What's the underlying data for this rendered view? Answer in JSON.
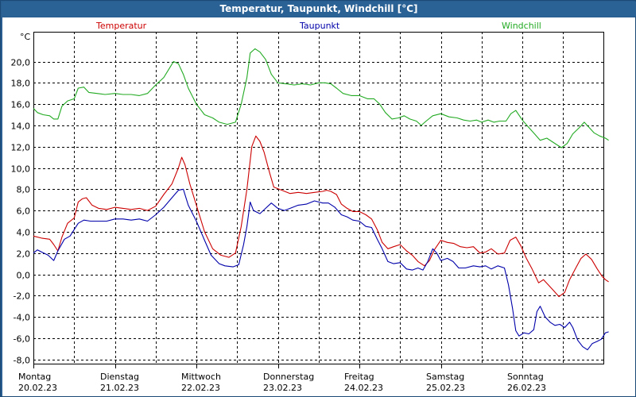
{
  "window": {
    "title": "Temperatur, Taupunkt, Windchill [°C]"
  },
  "chart_data": {
    "type": "line",
    "title": "Temperatur, Taupunkt, Windchill [°C]",
    "ylabel": "°C",
    "ylim": [
      -9,
      23
    ],
    "xlim": [
      0,
      7
    ],
    "yticks": [
      {
        "v": 20,
        "label": "20,0"
      },
      {
        "v": 18,
        "label": "18,0"
      },
      {
        "v": 16,
        "label": "16,0"
      },
      {
        "v": 14,
        "label": "14,0"
      },
      {
        "v": 12,
        "label": "12,0"
      },
      {
        "v": 10,
        "label": "10,0"
      },
      {
        "v": 8,
        "label": "8,0"
      },
      {
        "v": 6,
        "label": "6,0"
      },
      {
        "v": 4,
        "label": "4,0"
      },
      {
        "v": 2,
        "label": "2,0"
      },
      {
        "v": 0,
        "label": "0,0"
      },
      {
        "v": -2,
        "label": "-2,0"
      },
      {
        "v": -4,
        "label": "-4,0"
      },
      {
        "v": -6,
        "label": "-6,0"
      },
      {
        "v": -8,
        "label": "-8,0"
      }
    ],
    "days": [
      {
        "x": 0,
        "day": "Montag",
        "date": "20.02.23"
      },
      {
        "x": 1,
        "day": "Dienstag",
        "date": "21.02.23"
      },
      {
        "x": 2,
        "day": "Mittwoch",
        "date": "22.02.23"
      },
      {
        "x": 3,
        "day": "Donnerstag",
        "date": "23.02.23"
      },
      {
        "x": 4,
        "day": "Freitag",
        "date": "24.02.23"
      },
      {
        "x": 5,
        "day": "Samstag",
        "date": "25.02.23"
      },
      {
        "x": 6,
        "day": "Sonntag",
        "date": "26.02.23"
      }
    ],
    "vgrid": [
      0.5,
      1,
      1.5,
      2,
      2.5,
      3,
      3.5,
      4,
      4.5,
      5,
      5.5,
      6,
      6.5
    ],
    "series": [
      {
        "name": "Temperatur",
        "color": "#cc0000",
        "points": [
          [
            0.0,
            3.6
          ],
          [
            0.1,
            3.4
          ],
          [
            0.2,
            3.3
          ],
          [
            0.25,
            2.8
          ],
          [
            0.3,
            2.2
          ],
          [
            0.35,
            3.5
          ],
          [
            0.42,
            4.8
          ],
          [
            0.5,
            5.3
          ],
          [
            0.55,
            6.8
          ],
          [
            0.6,
            7.1
          ],
          [
            0.65,
            7.2
          ],
          [
            0.72,
            6.5
          ],
          [
            0.8,
            6.2
          ],
          [
            0.9,
            6.1
          ],
          [
            1.0,
            6.3
          ],
          [
            1.1,
            6.2
          ],
          [
            1.2,
            6.1
          ],
          [
            1.3,
            6.2
          ],
          [
            1.4,
            6.0
          ],
          [
            1.5,
            6.4
          ],
          [
            1.6,
            7.5
          ],
          [
            1.7,
            8.5
          ],
          [
            1.78,
            10.0
          ],
          [
            1.82,
            11.0
          ],
          [
            1.86,
            10.3
          ],
          [
            1.92,
            8.5
          ],
          [
            2.0,
            6.5
          ],
          [
            2.1,
            4.0
          ],
          [
            2.2,
            2.4
          ],
          [
            2.3,
            1.8
          ],
          [
            2.4,
            1.6
          ],
          [
            2.48,
            2.0
          ],
          [
            2.55,
            4.5
          ],
          [
            2.62,
            8.0
          ],
          [
            2.68,
            12.0
          ],
          [
            2.73,
            13.0
          ],
          [
            2.78,
            12.5
          ],
          [
            2.83,
            11.5
          ],
          [
            2.9,
            9.5
          ],
          [
            2.95,
            8.2
          ],
          [
            3.05,
            7.9
          ],
          [
            3.15,
            7.6
          ],
          [
            3.25,
            7.7
          ],
          [
            3.35,
            7.6
          ],
          [
            3.45,
            7.7
          ],
          [
            3.55,
            7.8
          ],
          [
            3.6,
            7.9
          ],
          [
            3.65,
            7.8
          ],
          [
            3.72,
            7.5
          ],
          [
            3.78,
            6.6
          ],
          [
            3.85,
            6.2
          ],
          [
            3.92,
            5.9
          ],
          [
            4.0,
            5.9
          ],
          [
            4.08,
            5.6
          ],
          [
            4.15,
            5.2
          ],
          [
            4.22,
            4.2
          ],
          [
            4.28,
            3.0
          ],
          [
            4.35,
            2.4
          ],
          [
            4.42,
            2.6
          ],
          [
            4.5,
            2.8
          ],
          [
            4.58,
            2.2
          ],
          [
            4.65,
            1.8
          ],
          [
            4.72,
            1.2
          ],
          [
            4.8,
            0.8
          ],
          [
            4.86,
            1.3
          ],
          [
            4.92,
            2.3
          ],
          [
            5.0,
            3.2
          ],
          [
            5.08,
            3.0
          ],
          [
            5.16,
            2.9
          ],
          [
            5.24,
            2.6
          ],
          [
            5.32,
            2.5
          ],
          [
            5.4,
            2.6
          ],
          [
            5.48,
            2.0
          ],
          [
            5.55,
            2.1
          ],
          [
            5.62,
            2.4
          ],
          [
            5.7,
            1.9
          ],
          [
            5.78,
            2.0
          ],
          [
            5.85,
            3.2
          ],
          [
            5.92,
            3.5
          ],
          [
            5.98,
            2.7
          ],
          [
            6.05,
            1.5
          ],
          [
            6.12,
            0.5
          ],
          [
            6.2,
            -0.8
          ],
          [
            6.26,
            -0.5
          ],
          [
            6.32,
            -1.0
          ],
          [
            6.38,
            -1.5
          ],
          [
            6.45,
            -2.1
          ],
          [
            6.52,
            -1.7
          ],
          [
            6.58,
            -0.5
          ],
          [
            6.65,
            0.5
          ],
          [
            6.72,
            1.5
          ],
          [
            6.78,
            1.9
          ],
          [
            6.85,
            1.4
          ],
          [
            6.92,
            0.5
          ],
          [
            6.98,
            -0.2
          ],
          [
            7.02,
            -0.5
          ],
          [
            7.06,
            -0.7
          ]
        ]
      },
      {
        "name": "Taupunkt",
        "color": "#0000aa",
        "points": [
          [
            0.0,
            2.0
          ],
          [
            0.05,
            2.3
          ],
          [
            0.1,
            2.1
          ],
          [
            0.18,
            1.8
          ],
          [
            0.25,
            1.3
          ],
          [
            0.3,
            2.2
          ],
          [
            0.38,
            3.3
          ],
          [
            0.45,
            3.6
          ],
          [
            0.55,
            4.8
          ],
          [
            0.62,
            5.1
          ],
          [
            0.7,
            5.0
          ],
          [
            0.8,
            5.0
          ],
          [
            0.9,
            5.0
          ],
          [
            1.0,
            5.2
          ],
          [
            1.1,
            5.2
          ],
          [
            1.2,
            5.1
          ],
          [
            1.3,
            5.2
          ],
          [
            1.4,
            5.0
          ],
          [
            1.5,
            5.6
          ],
          [
            1.6,
            6.3
          ],
          [
            1.7,
            7.2
          ],
          [
            1.78,
            7.9
          ],
          [
            1.84,
            8.0
          ],
          [
            1.9,
            6.5
          ],
          [
            2.0,
            5.0
          ],
          [
            2.1,
            3.2
          ],
          [
            2.18,
            1.8
          ],
          [
            2.28,
            1.0
          ],
          [
            2.35,
            0.8
          ],
          [
            2.45,
            0.7
          ],
          [
            2.52,
            0.9
          ],
          [
            2.58,
            2.8
          ],
          [
            2.62,
            4.5
          ],
          [
            2.66,
            6.8
          ],
          [
            2.7,
            6.0
          ],
          [
            2.78,
            5.7
          ],
          [
            2.85,
            6.2
          ],
          [
            2.92,
            6.7
          ],
          [
            3.0,
            6.2
          ],
          [
            3.08,
            6.0
          ],
          [
            3.15,
            6.2
          ],
          [
            3.25,
            6.5
          ],
          [
            3.35,
            6.6
          ],
          [
            3.45,
            6.9
          ],
          [
            3.55,
            6.7
          ],
          [
            3.62,
            6.7
          ],
          [
            3.7,
            6.3
          ],
          [
            3.78,
            5.6
          ],
          [
            3.85,
            5.4
          ],
          [
            3.92,
            5.1
          ],
          [
            4.0,
            5.0
          ],
          [
            4.08,
            4.5
          ],
          [
            4.15,
            4.4
          ],
          [
            4.22,
            3.3
          ],
          [
            4.28,
            2.4
          ],
          [
            4.35,
            1.2
          ],
          [
            4.42,
            1.0
          ],
          [
            4.5,
            1.1
          ],
          [
            4.58,
            0.5
          ],
          [
            4.65,
            0.4
          ],
          [
            4.72,
            0.6
          ],
          [
            4.78,
            0.4
          ],
          [
            4.84,
            1.2
          ],
          [
            4.9,
            2.4
          ],
          [
            4.95,
            2.0
          ],
          [
            5.0,
            1.3
          ],
          [
            5.08,
            1.5
          ],
          [
            5.15,
            1.2
          ],
          [
            5.22,
            0.6
          ],
          [
            5.3,
            0.6
          ],
          [
            5.4,
            0.8
          ],
          [
            5.48,
            0.7
          ],
          [
            5.55,
            0.8
          ],
          [
            5.62,
            0.5
          ],
          [
            5.7,
            0.8
          ],
          [
            5.78,
            0.6
          ],
          [
            5.83,
            -1.0
          ],
          [
            5.88,
            -3.2
          ],
          [
            5.92,
            -5.3
          ],
          [
            5.96,
            -5.8
          ],
          [
            6.02,
            -5.5
          ],
          [
            6.08,
            -5.6
          ],
          [
            6.14,
            -5.2
          ],
          [
            6.18,
            -3.5
          ],
          [
            6.22,
            -3.0
          ],
          [
            6.28,
            -4.0
          ],
          [
            6.34,
            -4.5
          ],
          [
            6.4,
            -4.8
          ],
          [
            6.46,
            -4.7
          ],
          [
            6.52,
            -5.0
          ],
          [
            6.58,
            -4.5
          ],
          [
            6.62,
            -5.0
          ],
          [
            6.68,
            -6.2
          ],
          [
            6.74,
            -6.8
          ],
          [
            6.8,
            -7.1
          ],
          [
            6.86,
            -6.5
          ],
          [
            6.92,
            -6.3
          ],
          [
            6.97,
            -6.1
          ],
          [
            7.02,
            -5.5
          ],
          [
            7.06,
            -5.4
          ]
        ]
      },
      {
        "name": "Windchill",
        "color": "#22aa22",
        "points": [
          [
            0.0,
            15.6
          ],
          [
            0.05,
            15.2
          ],
          [
            0.12,
            15.0
          ],
          [
            0.2,
            14.9
          ],
          [
            0.25,
            14.6
          ],
          [
            0.3,
            14.6
          ],
          [
            0.35,
            15.8
          ],
          [
            0.42,
            16.3
          ],
          [
            0.5,
            16.5
          ],
          [
            0.55,
            17.5
          ],
          [
            0.62,
            17.6
          ],
          [
            0.68,
            17.1
          ],
          [
            0.78,
            17.0
          ],
          [
            0.88,
            16.9
          ],
          [
            1.0,
            17.0
          ],
          [
            1.1,
            16.9
          ],
          [
            1.2,
            16.9
          ],
          [
            1.3,
            16.8
          ],
          [
            1.4,
            17.0
          ],
          [
            1.5,
            17.8
          ],
          [
            1.6,
            18.5
          ],
          [
            1.68,
            19.5
          ],
          [
            1.72,
            20.0
          ],
          [
            1.78,
            19.8
          ],
          [
            1.84,
            18.8
          ],
          [
            1.9,
            17.5
          ],
          [
            2.0,
            16.0
          ],
          [
            2.1,
            15.0
          ],
          [
            2.2,
            14.7
          ],
          [
            2.28,
            14.3
          ],
          [
            2.38,
            14.1
          ],
          [
            2.48,
            14.3
          ],
          [
            2.55,
            16.0
          ],
          [
            2.62,
            18.5
          ],
          [
            2.66,
            20.8
          ],
          [
            2.72,
            21.2
          ],
          [
            2.78,
            20.9
          ],
          [
            2.85,
            20.2
          ],
          [
            2.92,
            18.8
          ],
          [
            3.0,
            18.0
          ],
          [
            3.1,
            17.9
          ],
          [
            3.2,
            17.8
          ],
          [
            3.3,
            17.9
          ],
          [
            3.4,
            17.8
          ],
          [
            3.5,
            18.0
          ],
          [
            3.58,
            18.0
          ],
          [
            3.65,
            17.9
          ],
          [
            3.72,
            17.5
          ],
          [
            3.8,
            17.0
          ],
          [
            3.9,
            16.8
          ],
          [
            4.0,
            16.8
          ],
          [
            4.1,
            16.5
          ],
          [
            4.18,
            16.5
          ],
          [
            4.25,
            16.0
          ],
          [
            4.32,
            15.2
          ],
          [
            4.4,
            14.6
          ],
          [
            4.48,
            14.7
          ],
          [
            4.55,
            14.9
          ],
          [
            4.62,
            14.6
          ],
          [
            4.7,
            14.4
          ],
          [
            4.76,
            14.0
          ],
          [
            4.82,
            14.4
          ],
          [
            4.9,
            14.9
          ],
          [
            5.0,
            15.1
          ],
          [
            5.1,
            14.8
          ],
          [
            5.2,
            14.7
          ],
          [
            5.28,
            14.5
          ],
          [
            5.36,
            14.4
          ],
          [
            5.44,
            14.5
          ],
          [
            5.5,
            14.3
          ],
          [
            5.58,
            14.5
          ],
          [
            5.65,
            14.3
          ],
          [
            5.72,
            14.4
          ],
          [
            5.8,
            14.4
          ],
          [
            5.86,
            15.1
          ],
          [
            5.92,
            15.4
          ],
          [
            6.0,
            14.5
          ],
          [
            6.08,
            13.8
          ],
          [
            6.15,
            13.2
          ],
          [
            6.22,
            12.6
          ],
          [
            6.3,
            12.8
          ],
          [
            6.36,
            12.5
          ],
          [
            6.42,
            12.2
          ],
          [
            6.48,
            11.9
          ],
          [
            6.55,
            12.3
          ],
          [
            6.62,
            13.2
          ],
          [
            6.7,
            13.8
          ],
          [
            6.76,
            14.3
          ],
          [
            6.82,
            13.8
          ],
          [
            6.88,
            13.3
          ],
          [
            6.95,
            13.0
          ],
          [
            7.02,
            12.8
          ],
          [
            7.06,
            12.6
          ]
        ]
      }
    ]
  }
}
